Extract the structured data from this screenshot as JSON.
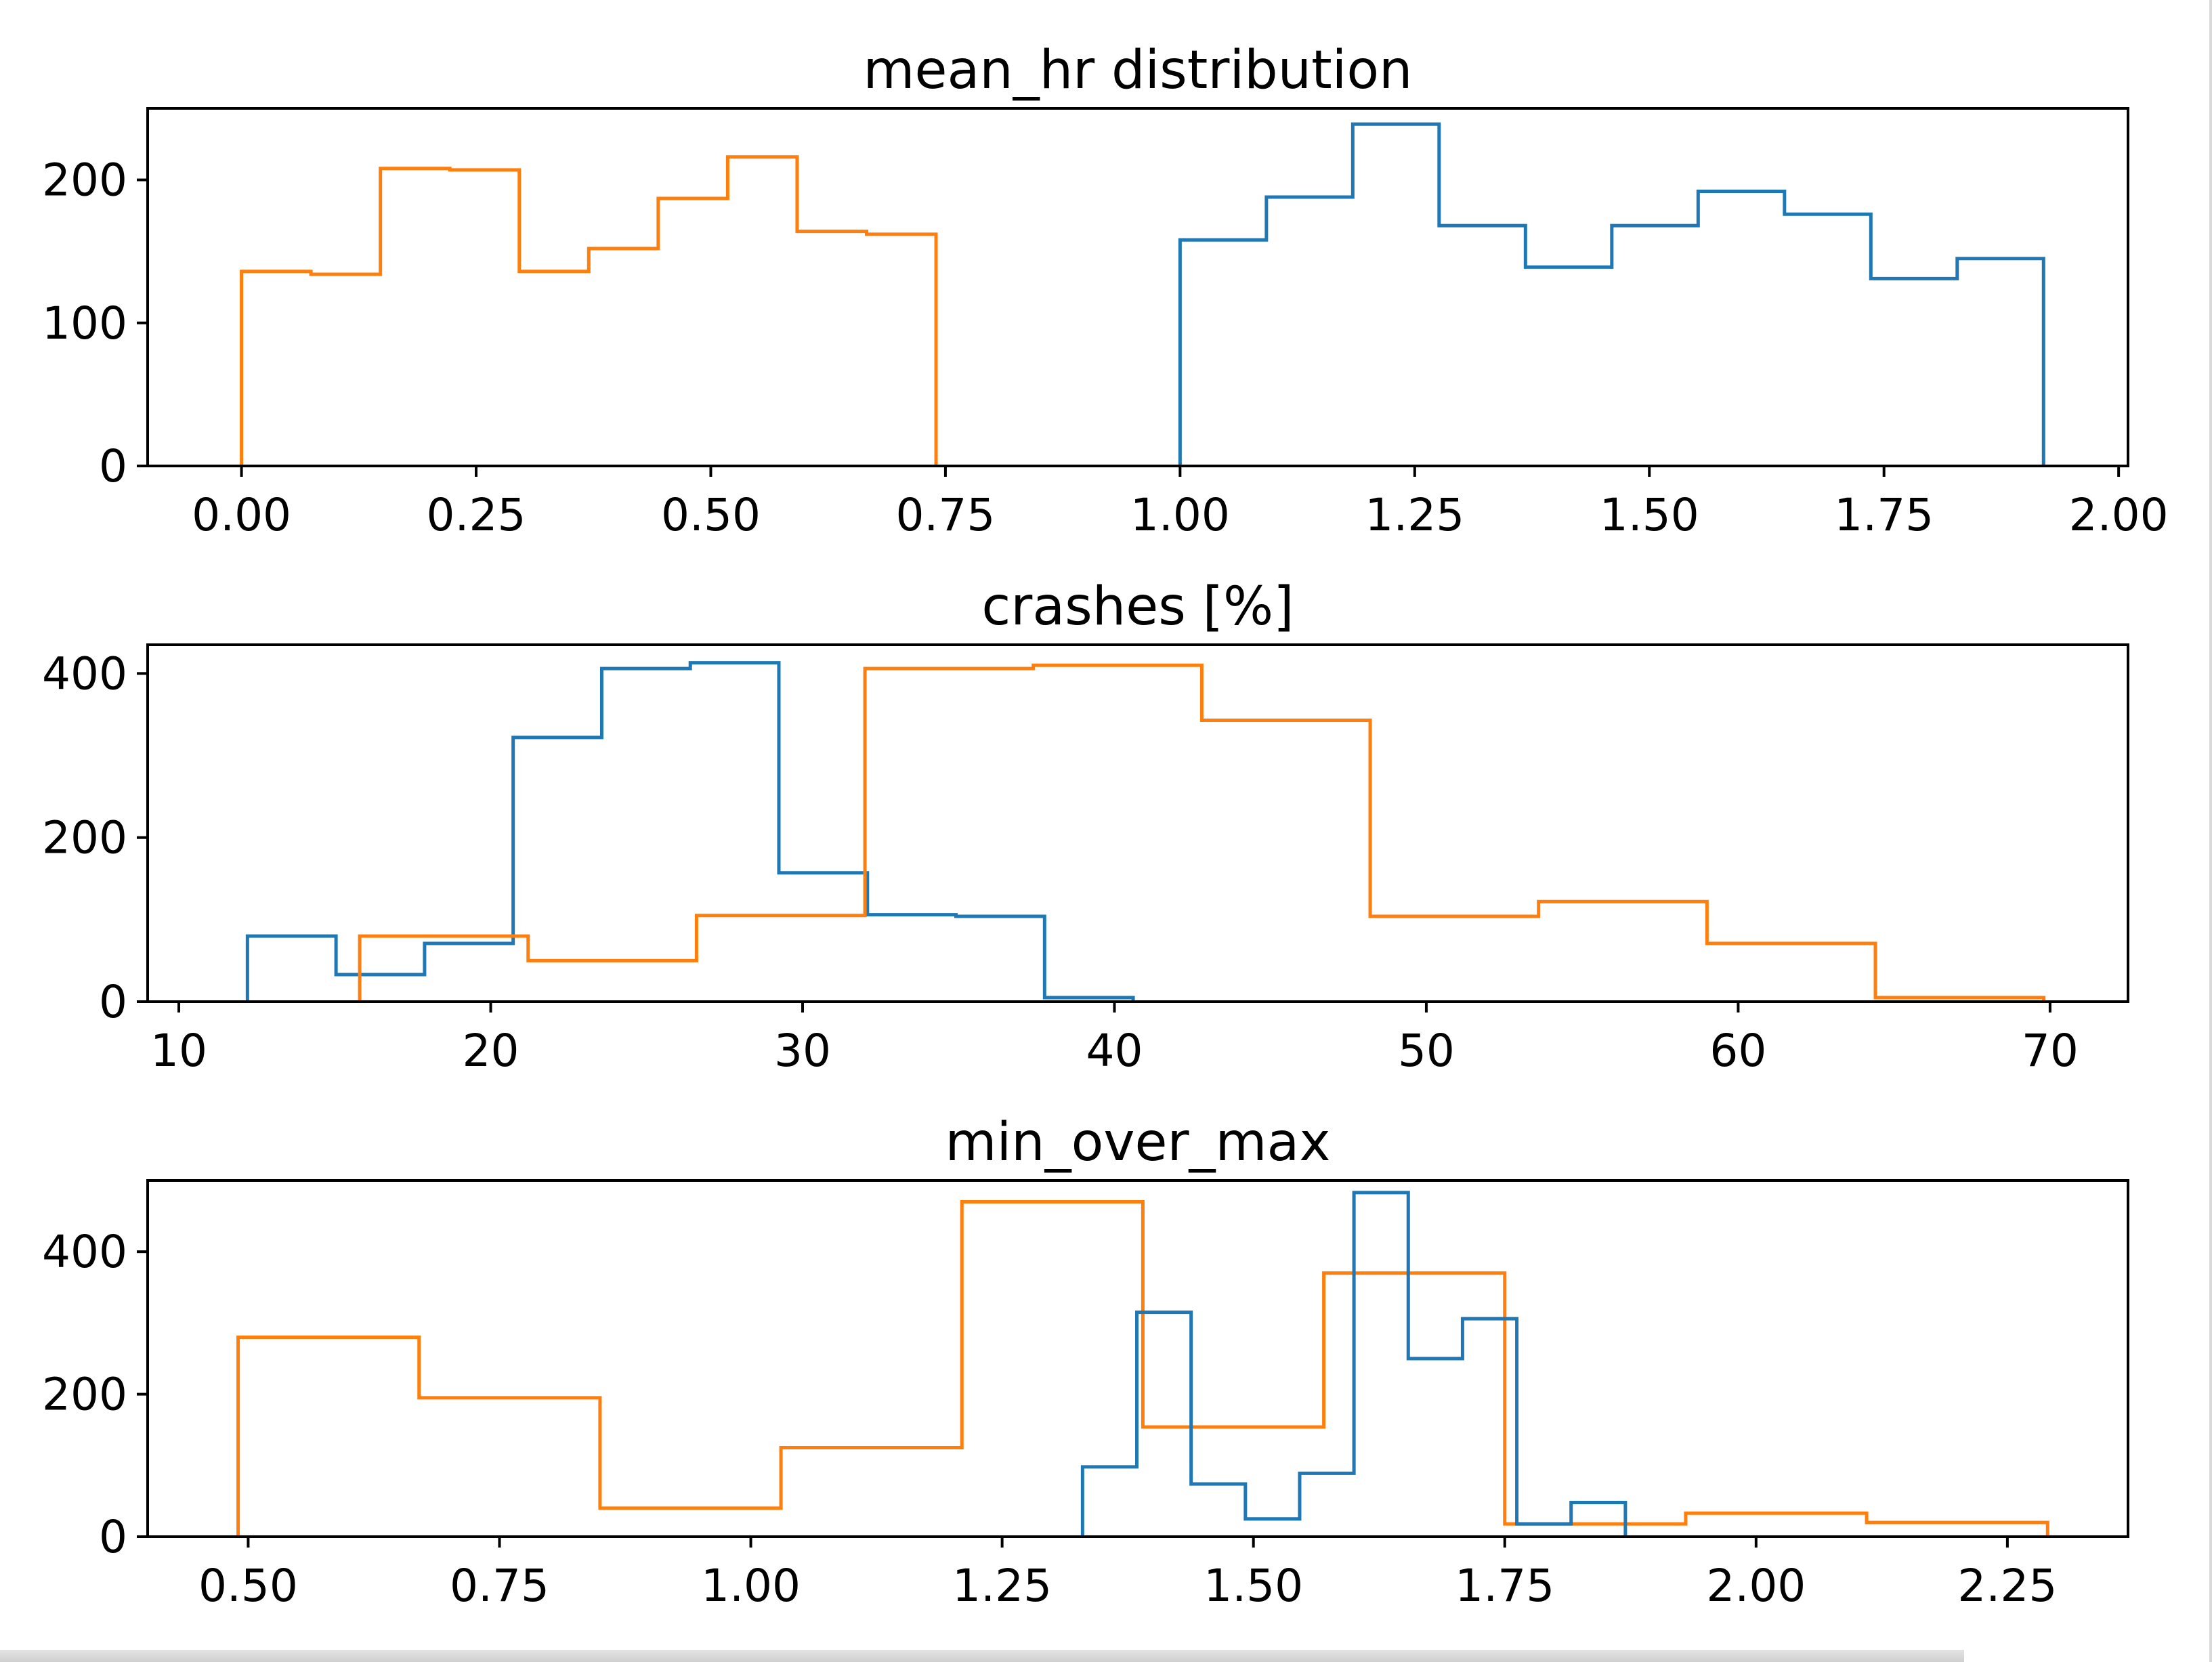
{
  "colors": {
    "series_a": "#1f77b4",
    "series_b": "#ff7f0e",
    "axes": "#000000",
    "text": "#000000"
  },
  "chart_data": [
    {
      "type": "histogram",
      "title": "mean_hr distribution",
      "xlim": [
        -0.1,
        2.01
      ],
      "ylim": [
        0,
        250
      ],
      "xticks": [
        0.0,
        0.25,
        0.5,
        0.75,
        1.0,
        1.25,
        1.5,
        1.75,
        2.0
      ],
      "xtick_labels": [
        "0.00",
        "0.25",
        "0.50",
        "0.75",
        "1.00",
        "1.25",
        "1.50",
        "1.75",
        "2.00"
      ],
      "yticks": [
        0,
        100,
        200
      ],
      "ytick_labels": [
        "0",
        "100",
        "200"
      ],
      "series": [
        {
          "color": "#ff7f0e",
          "edges": [
            0,
            0.074,
            0.148,
            0.222,
            0.296,
            0.37,
            0.444,
            0.518,
            0.592,
            0.666,
            0.74
          ],
          "counts": [
            136,
            134,
            208,
            207,
            136,
            152,
            187,
            216,
            164,
            162
          ]
        },
        {
          "color": "#1f77b4",
          "edges": [
            1.0,
            1.092,
            1.184,
            1.276,
            1.368,
            1.46,
            1.552,
            1.644,
            1.736,
            1.828,
            1.92
          ],
          "counts": [
            158,
            188,
            239,
            168,
            139,
            168,
            192,
            176,
            131,
            145
          ]
        }
      ]
    },
    {
      "type": "histogram",
      "title": "crashes [%]",
      "xlim": [
        9,
        72.5
      ],
      "ylim": [
        0,
        435
      ],
      "xticks": [
        10,
        20,
        30,
        40,
        50,
        60,
        70
      ],
      "xtick_labels": [
        "10",
        "20",
        "30",
        "40",
        "50",
        "60",
        "70"
      ],
      "yticks": [
        0,
        200,
        400
      ],
      "ytick_labels": [
        "0",
        "200",
        "400"
      ],
      "series": [
        {
          "color": "#1f77b4",
          "edges": [
            12.2,
            15.04,
            17.88,
            20.72,
            23.56,
            26.4,
            29.24,
            32.08,
            34.92,
            37.76,
            40.6
          ],
          "counts": [
            80,
            33,
            71,
            322,
            406,
            413,
            157,
            106,
            104,
            5
          ]
        },
        {
          "color": "#ff7f0e",
          "edges": [
            15.8,
            21.2,
            26.6,
            32.0,
            37.4,
            42.8,
            48.2,
            53.6,
            59.0,
            64.4,
            69.8
          ],
          "counts": [
            80,
            50,
            105,
            406,
            410,
            343,
            104,
            122,
            71,
            5
          ]
        }
      ]
    },
    {
      "type": "histogram",
      "title": "min_over_max",
      "xlim": [
        0.4,
        2.37
      ],
      "ylim": [
        0,
        500
      ],
      "xticks": [
        0.5,
        0.75,
        1.0,
        1.25,
        1.5,
        1.75,
        2.0,
        2.25
      ],
      "xtick_labels": [
        "0.50",
        "0.75",
        "1.00",
        "1.25",
        "1.50",
        "1.75",
        "2.00",
        "2.25"
      ],
      "yticks": [
        0,
        200,
        400
      ],
      "ytick_labels": [
        "0",
        "200",
        "400"
      ],
      "series": [
        {
          "color": "#ff7f0e",
          "edges": [
            0.49,
            0.67,
            0.85,
            1.03,
            1.21,
            1.39,
            1.57,
            1.75,
            1.93,
            2.11,
            2.29
          ],
          "counts": [
            280,
            195,
            40,
            125,
            470,
            154,
            370,
            18,
            33,
            20
          ]
        },
        {
          "color": "#1f77b4",
          "edges": [
            1.33,
            1.384,
            1.438,
            1.492,
            1.546,
            1.6,
            1.654,
            1.708,
            1.762,
            1.816,
            1.87
          ],
          "counts": [
            98,
            315,
            74,
            25,
            89,
            483,
            250,
            306,
            18,
            48
          ]
        }
      ]
    }
  ]
}
